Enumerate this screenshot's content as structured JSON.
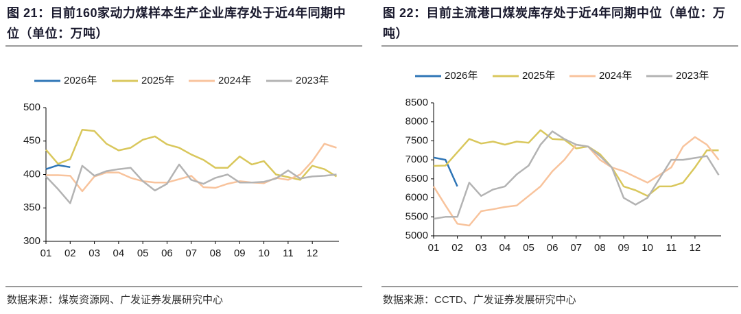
{
  "chart_data": [
    {
      "type": "line",
      "title": "图 21：目前160家动力煤样本生产企业库存处于近4年同期中位（单位：万吨）",
      "source": "数据来源：煤炭资源网、广发证券发展研究中心",
      "legend": "top",
      "x": [
        1,
        1.5,
        2,
        2.5,
        3,
        3.5,
        4,
        4.5,
        5,
        5.5,
        6,
        6.5,
        7,
        7.5,
        8,
        8.5,
        9,
        9.5,
        10,
        10.5,
        11,
        11.5,
        12,
        12.5,
        13
      ],
      "xlim": [
        1,
        13.1
      ],
      "xticks": [
        {
          "value": 1,
          "label": "01"
        },
        {
          "value": 2,
          "label": "02"
        },
        {
          "value": 3,
          "label": "03"
        },
        {
          "value": 4,
          "label": "04"
        },
        {
          "value": 5,
          "label": "05"
        },
        {
          "value": 6,
          "label": "06"
        },
        {
          "value": 7,
          "label": "07"
        },
        {
          "value": 8,
          "label": "08"
        },
        {
          "value": 9,
          "label": "09"
        },
        10,
        11,
        12
      ],
      "ylim": [
        300,
        500
      ],
      "yticks": [
        300,
        350,
        400,
        450,
        500
      ],
      "series": [
        {
          "name": "2026年",
          "color": "#2e75b6",
          "values": [
            408,
            414,
            411,
            null,
            null,
            null,
            null,
            null,
            null,
            null,
            null,
            null,
            null,
            null,
            null,
            null,
            null,
            null,
            null,
            null,
            null,
            null,
            null,
            null,
            null
          ]
        },
        {
          "name": "2025年",
          "color": "#d9c75c",
          "values": [
            437,
            416,
            423,
            467,
            465,
            446,
            436,
            440,
            452,
            457,
            445,
            440,
            430,
            422,
            410,
            410,
            427,
            415,
            420,
            400,
            396,
            392,
            413,
            408,
            397
          ]
        },
        {
          "name": "2024年",
          "color": "#f8c39c",
          "values": [
            399,
            399,
            398,
            375,
            397,
            403,
            403,
            395,
            390,
            388,
            388,
            393,
            398,
            381,
            380,
            386,
            390,
            388,
            387,
            395,
            392,
            400,
            420,
            446,
            440
          ]
        },
        {
          "name": "2023年",
          "color": "#b3b3b3",
          "values": [
            397,
            378,
            357,
            413,
            398,
            405,
            408,
            410,
            390,
            376,
            386,
            415,
            392,
            386,
            395,
            400,
            388,
            388,
            389,
            394,
            406,
            394,
            397,
            398,
            400
          ]
        }
      ]
    },
    {
      "type": "line",
      "title": "图 22：目前主流港口煤炭库存处于近4年同期中位（单位：万吨）",
      "source": "数据来源：CCTD、广发证券发展研究中心",
      "legend": "top",
      "x": [
        1,
        1.5,
        2,
        2.5,
        3,
        3.5,
        4,
        4.5,
        5,
        5.5,
        6,
        6.5,
        7,
        7.5,
        8,
        8.5,
        9,
        9.5,
        10,
        10.5,
        11,
        11.5,
        12,
        12.5,
        13
      ],
      "xlim": [
        1,
        13.1
      ],
      "xticks": [
        {
          "value": 1,
          "label": "01"
        },
        {
          "value": 2,
          "label": "02"
        },
        {
          "value": 3,
          "label": "03"
        },
        {
          "value": 4,
          "label": "04"
        },
        {
          "value": 5,
          "label": "05"
        },
        {
          "value": 6,
          "label": "06"
        },
        {
          "value": 7,
          "label": "07"
        },
        {
          "value": 8,
          "label": "08"
        },
        {
          "value": 9,
          "label": "09"
        },
        10,
        11,
        12
      ],
      "ylim": [
        5000,
        8500
      ],
      "yticks": [
        5000,
        5500,
        6000,
        6500,
        7000,
        7500,
        8000,
        8500
      ],
      "series": [
        {
          "name": "2026年",
          "color": "#2e75b6",
          "values": [
            7060,
            7000,
            6300,
            null,
            null,
            null,
            null,
            null,
            null,
            null,
            null,
            null,
            null,
            null,
            null,
            null,
            null,
            null,
            null,
            null,
            null,
            null,
            null,
            null,
            null
          ]
        },
        {
          "name": "2025年",
          "color": "#d9c75c",
          "values": [
            6840,
            6850,
            7200,
            7550,
            7430,
            7480,
            7400,
            7480,
            7450,
            7780,
            7550,
            7530,
            7300,
            7350,
            7150,
            6800,
            6300,
            6200,
            6050,
            6300,
            6300,
            6400,
            6800,
            7250,
            7250
          ]
        },
        {
          "name": "2024年",
          "color": "#f8c39c",
          "values": [
            6300,
            5800,
            5320,
            5270,
            5650,
            5700,
            5760,
            5800,
            6050,
            6300,
            6700,
            7000,
            7400,
            7350,
            7000,
            6800,
            6700,
            6550,
            6400,
            6600,
            6800,
            7350,
            7600,
            7400,
            7000
          ]
        },
        {
          "name": "2023年",
          "color": "#b3b3b3",
          "values": [
            5450,
            5500,
            5500,
            6400,
            6050,
            6220,
            6300,
            6620,
            6850,
            7400,
            7750,
            7550,
            7400,
            7350,
            7100,
            6800,
            6000,
            5820,
            6000,
            6500,
            7000,
            7000,
            7050,
            7100,
            6600
          ]
        }
      ]
    }
  ]
}
